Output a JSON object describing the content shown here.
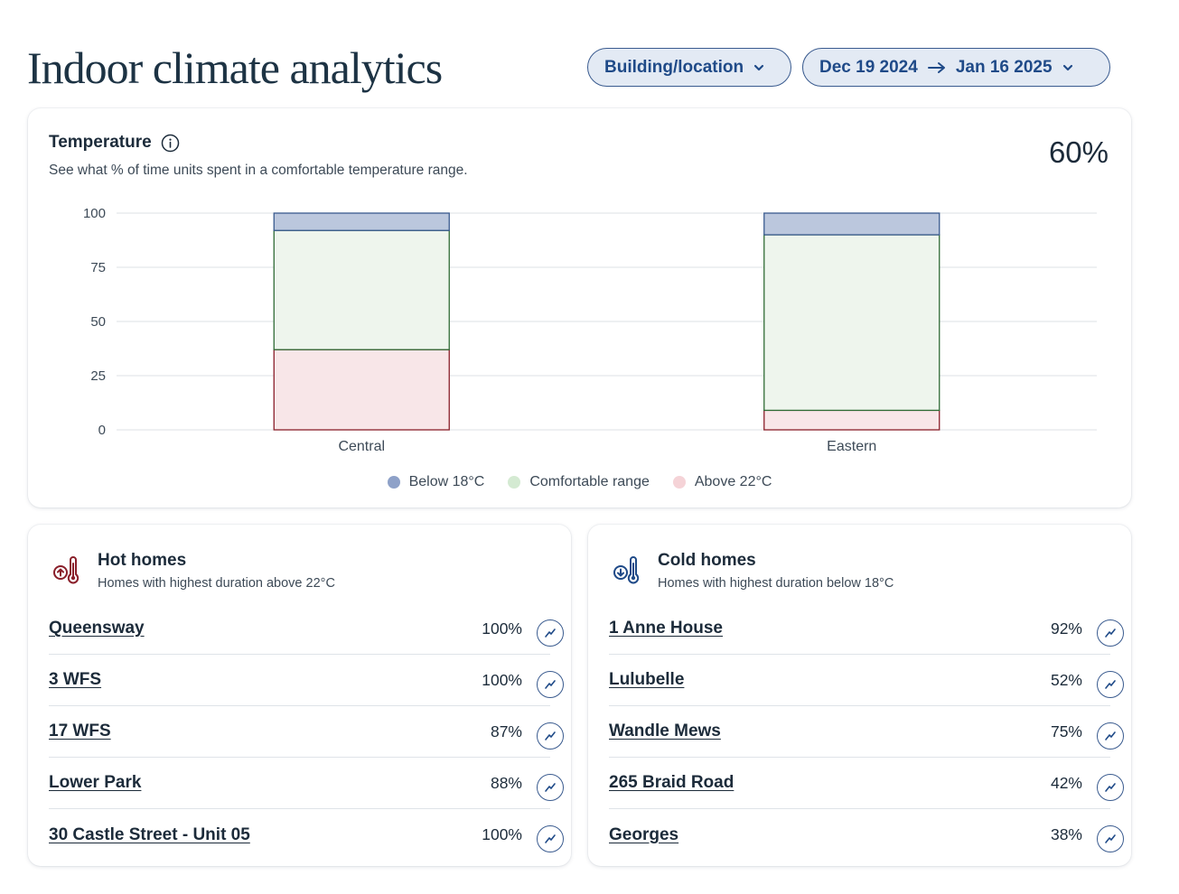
{
  "header": {
    "title": "Indoor climate analytics",
    "location_filter_label": "Building/location",
    "date_start": "Dec 19 2024",
    "date_end": "Jan 16 2025"
  },
  "temperature": {
    "title": "Temperature",
    "subtitle": "See what % of time units spent in a comfortable temperature range.",
    "overall_pct": "60%"
  },
  "chart_data": {
    "type": "bar",
    "stacked": true,
    "categories": [
      "Central",
      "Eastern"
    ],
    "series": [
      {
        "name": "Above 22°C",
        "values": [
          37,
          9
        ],
        "color": "#f8e6e8",
        "stroke": "#8a1f2a"
      },
      {
        "name": "Comfortable range",
        "values": [
          55,
          81
        ],
        "color": "#eef5ed",
        "stroke": "#2f6b35"
      },
      {
        "name": "Below 18°C",
        "values": [
          8,
          10
        ],
        "color": "#bbc7dd",
        "stroke": "#3a5b8f"
      }
    ],
    "ylim": [
      0,
      100
    ],
    "yticks": [
      "0",
      "25",
      "50",
      "75",
      "100"
    ],
    "grid": true,
    "legend_position": "bottom",
    "legend_order": [
      "Below 18°C",
      "Comfortable range",
      "Above 22°C"
    ],
    "legend_colors": [
      "#8ea1c8",
      "#d4ead2",
      "#f5d3d7"
    ]
  },
  "hot_homes": {
    "title": "Hot homes",
    "subtitle": "Homes with highest duration above 22°C",
    "icon": "thermometer-up-icon",
    "items": [
      {
        "name": "Queensway",
        "value": "100%"
      },
      {
        "name": "3 WFS",
        "value": "100%"
      },
      {
        "name": "17 WFS",
        "value": "87%"
      },
      {
        "name": "Lower Park",
        "value": "88%"
      },
      {
        "name": "30 Castle Street - Unit 05",
        "value": "100%"
      }
    ]
  },
  "cold_homes": {
    "title": "Cold homes",
    "subtitle": "Homes with highest duration below 18°C",
    "icon": "thermometer-down-icon",
    "items": [
      {
        "name": "1 Anne House",
        "value": "92%"
      },
      {
        "name": "Lulubelle",
        "value": "52%"
      },
      {
        "name": "Wandle Mews",
        "value": "75%"
      },
      {
        "name": "265 Braid Road",
        "value": "42%"
      },
      {
        "name": "Georges",
        "value": "38%"
      }
    ]
  },
  "colors": {
    "accent": "#1f4a88",
    "hot": "#8a1f2a",
    "cold": "#1f4a88"
  }
}
